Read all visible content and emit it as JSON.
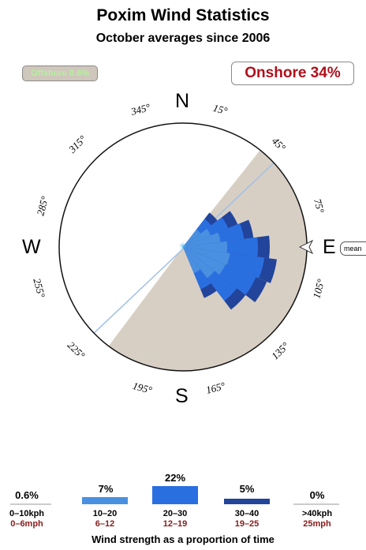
{
  "header": {
    "title": "Poxim Wind Statistics",
    "subtitle": "October averages since 2006"
  },
  "badges": {
    "offshore": "Offshore 0.6%",
    "onshore": "Onshore 34%",
    "mean_label": "mean"
  },
  "compass": {
    "n": "N",
    "e": "E",
    "s": "S",
    "w": "W"
  },
  "degree_labels": [
    "15°",
    "45°",
    "75°",
    "105°",
    "135°",
    "165°",
    "195°",
    "225°",
    "255°",
    "285°",
    "315°",
    "345°"
  ],
  "colors": {
    "land": "#d8cfc4",
    "shoreline": "#9ec0e8",
    "band_10_20": "#4a90e0",
    "band_20_30": "#2a6fe0",
    "band_30_40": "#22449a",
    "onshore_text": "#b0101c"
  },
  "legend": {
    "caption": "Wind strength as a proportion of time",
    "bands": [
      {
        "pct": "0.6%",
        "kph": "0–10kph",
        "mph": "0–6mph",
        "color": "#cccccc"
      },
      {
        "pct": "7%",
        "kph": "10–20",
        "mph": "6–12",
        "color": "#4a90e0"
      },
      {
        "pct": "22%",
        "kph": "20–30",
        "mph": "12–19",
        "color": "#2a6fe0"
      },
      {
        "pct": "5%",
        "kph": "30–40",
        "mph": "19–25",
        "color": "#22449a"
      },
      {
        "pct": "0%",
        "kph": ">40kph",
        "mph": "25mph",
        "color": "#cccccc"
      }
    ]
  }
}
